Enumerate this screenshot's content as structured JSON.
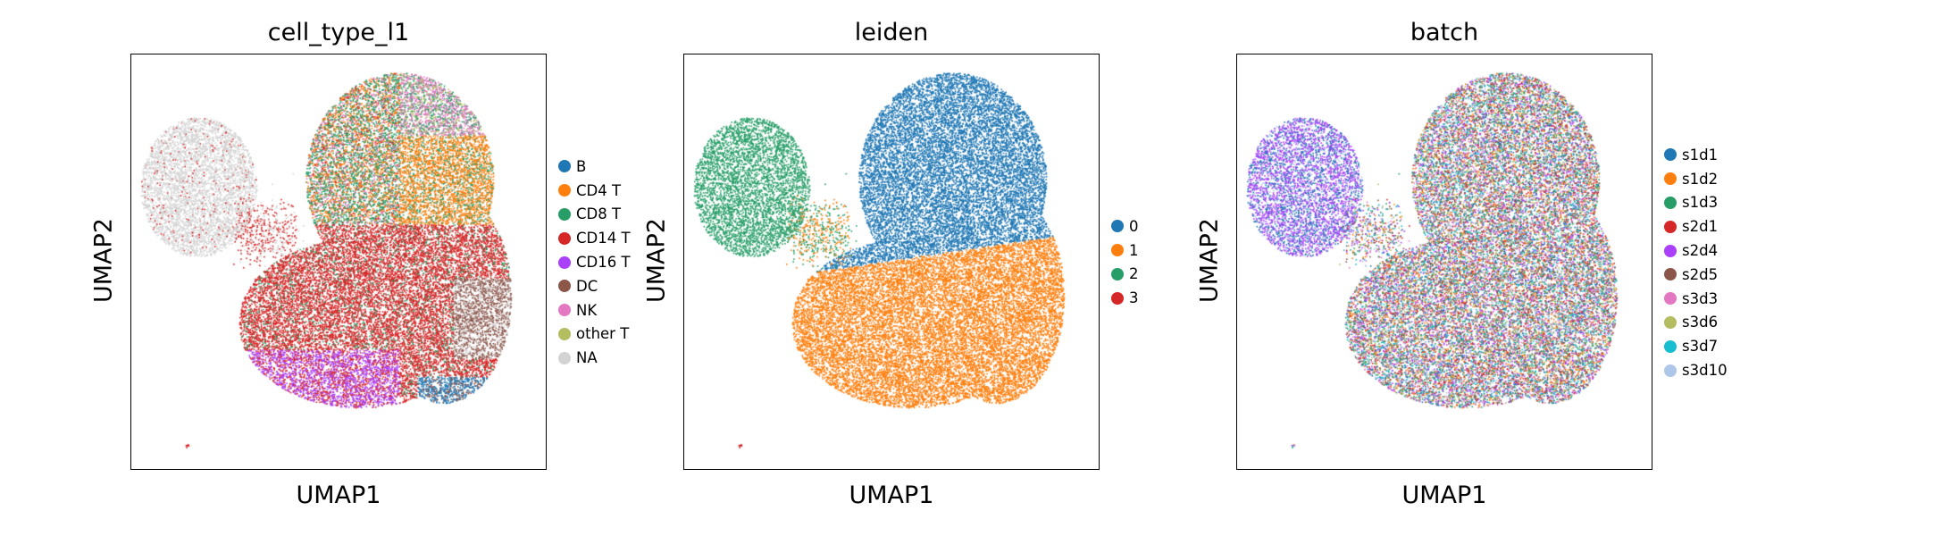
{
  "chart_data": [
    {
      "type": "scatter",
      "title": "cell_type_l1",
      "xlabel": "UMAP1",
      "ylabel": "UMAP2",
      "legend": [
        {
          "name": "B",
          "color": "#1f77b4"
        },
        {
          "name": "CD4 T",
          "color": "#ff7f0e"
        },
        {
          "name": "CD8 T",
          "color": "#279e68"
        },
        {
          "name": "CD14 T",
          "color": "#d62728"
        },
        {
          "name": "CD16 T",
          "color": "#aa40fc"
        },
        {
          "name": "DC",
          "color": "#8c564b"
        },
        {
          "name": "NK",
          "color": "#e377c2"
        },
        {
          "name": "other T",
          "color": "#b5bd61"
        },
        {
          "name": "NA",
          "color": "#d3d3d3"
        }
      ],
      "legend_position": "right"
    },
    {
      "type": "scatter",
      "title": "leiden",
      "xlabel": "UMAP1",
      "ylabel": "UMAP2",
      "legend": [
        {
          "name": "0",
          "color": "#1f77b4"
        },
        {
          "name": "1",
          "color": "#ff7f0e"
        },
        {
          "name": "2",
          "color": "#279e68"
        },
        {
          "name": "3",
          "color": "#d62728"
        }
      ],
      "legend_position": "right"
    },
    {
      "type": "scatter",
      "title": "batch",
      "xlabel": "UMAP1",
      "ylabel": "UMAP2",
      "legend": [
        {
          "name": "s1d1",
          "color": "#1f77b4"
        },
        {
          "name": "s1d2",
          "color": "#ff7f0e"
        },
        {
          "name": "s1d3",
          "color": "#279e68"
        },
        {
          "name": "s2d1",
          "color": "#d62728"
        },
        {
          "name": "s2d4",
          "color": "#aa40fc"
        },
        {
          "name": "s2d5",
          "color": "#8c564b"
        },
        {
          "name": "s3d3",
          "color": "#e377c2"
        },
        {
          "name": "s3d6",
          "color": "#b5bd61"
        },
        {
          "name": "s3d7",
          "color": "#17becf"
        },
        {
          "name": "s3d10",
          "color": "#aec7e8"
        }
      ],
      "legend_position": "right"
    }
  ]
}
